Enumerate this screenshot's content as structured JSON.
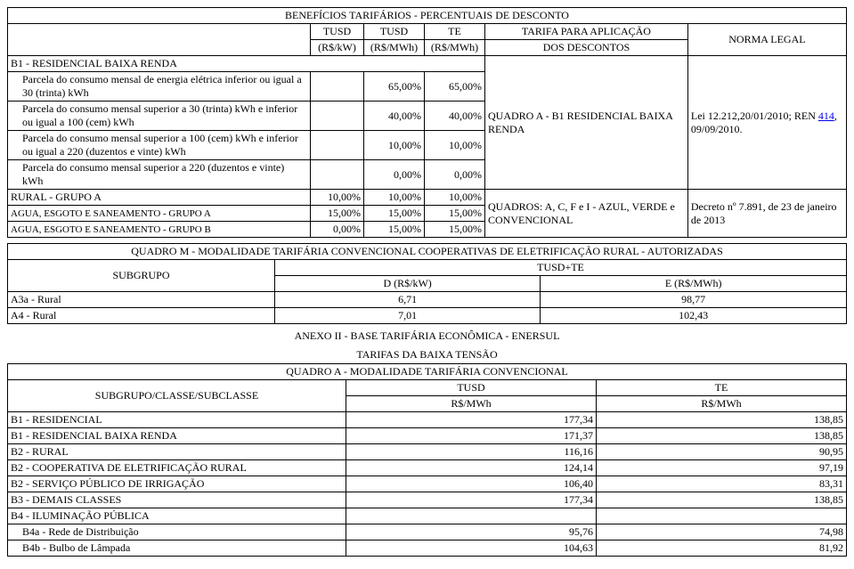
{
  "table1": {
    "title": "BENEFÍCIOS TARIFÁRIOS - PERCENTUAIS DE DESCONTO",
    "headers": {
      "tusd_kw": "TUSD (R$/kW)",
      "tusd_mwh": "TUSD (R$/MWh)",
      "te_mwh": "TE (R$/MWh)",
      "tarifa": "TARIFA PARA APLICAÇÃO DOS DESCONTOS",
      "norma": "NORMA LEGAL",
      "tusd_kw_l1": "TUSD",
      "tusd_kw_l2": "(R$/kW)",
      "tusd_mwh_l1": "TUSD",
      "tusd_mwh_l2": "(R$/MWh)",
      "te_mwh_l1": "TE",
      "te_mwh_l2": "(R$/MWh)",
      "tarifa_l1": "TARIFA PARA APLICAÇÃO",
      "tarifa_l2": "DOS DESCONTOS"
    },
    "groupA": {
      "header": "B1 - RESIDENCIAL BAIXA RENDA",
      "rows": [
        {
          "desc": "Parcela do consumo mensal de energia elétrica inferior ou igual a 30 (trinta) kWh",
          "c2": "65,00%",
          "c3": "65,00%"
        },
        {
          "desc": "Parcela do consumo mensal superior a 30 (trinta) kWh e inferior ou igual a 100 (cem) kWh",
          "c2": "40,00%",
          "c3": "40,00%"
        },
        {
          "desc": "Parcela do consumo mensal superior a 100 (cem) kWh e inferior ou igual a 220 (duzentos e vinte) kWh",
          "c2": "10,00%",
          "c3": "10,00%"
        },
        {
          "desc": "Parcela do consumo mensal superior a 220 (duzentos e vinte) kWh",
          "c2": "0,00%",
          "c3": "0,00%"
        }
      ],
      "tarifa": "QUADRO A - B1 RESIDENCIAL BAIXA RENDA",
      "norma_pre": "Lei 12.212,20/01/2010; REN ",
      "norma_link": "414",
      "norma_post": ", 09/09/2010."
    },
    "groupB": {
      "rows": [
        {
          "desc": "RURAL - GRUPO A",
          "c1": "10,00%",
          "c2": "10,00%",
          "c3": "10,00%"
        },
        {
          "desc": "AGUA, ESGOTO E SANEAMENTO - GRUPO A",
          "c1": "15,00%",
          "c2": "15,00%",
          "c3": "15,00%"
        },
        {
          "desc": "AGUA, ESGOTO E SANEAMENTO - GRUPO B",
          "c1": "0,00%",
          "c2": "15,00%",
          "c3": "15,00%"
        }
      ],
      "tarifa": "QUADROS: A, C, F e I - AZUL, VERDE e CONVENCIONAL",
      "norma": "Decreto nº 7.891, de 23 de janeiro de 2013"
    }
  },
  "table2": {
    "title": "QUADRO M - MODALIDADE TARIFÁRIA CONVENCIONAL COOPERATIVAS DE ELETRIFICAÇÃO RURAL - AUTORIZADAS",
    "headers": {
      "sub": "SUBGRUPO",
      "tusd_te": "TUSD+TE",
      "d": "D (R$/kW)",
      "e": "E (R$/MWh)"
    },
    "rows": [
      {
        "sub": "A3a - Rural",
        "d": "6,71",
        "e": "98,77"
      },
      {
        "sub": "A4 - Rural",
        "d": "7,01",
        "e": "102,43"
      }
    ]
  },
  "anexo": "ANEXO II - BASE TARIFÁRIA ECONÔMICA - ENERSUL",
  "tarifas_bt": "TARIFAS DA BAIXA TENSÃO",
  "table3": {
    "title": "QUADRO A - MODALIDADE TARIFÁRIA CONVENCIONAL",
    "headers": {
      "sub": "SUBGRUPO/CLASSE/SUBCLASSE",
      "tusd": "TUSD",
      "te": "TE",
      "unit": "R$/MWh"
    },
    "rows": [
      {
        "desc": "B1 - RESIDENCIAL",
        "tusd": "177,34",
        "te": "138,85"
      },
      {
        "desc": "B1 - RESIDENCIAL BAIXA RENDA",
        "tusd": "171,37",
        "te": "138,85"
      },
      {
        "desc": "B2 - RURAL",
        "tusd": "116,16",
        "te": "90,95"
      },
      {
        "desc": "B2 - COOPERATIVA DE ELETRIFICAÇÃO RURAL",
        "tusd": "124,14",
        "te": "97,19"
      },
      {
        "desc": "B2 - SERVIÇO PÚBLICO DE IRRIGAÇÃO",
        "tusd": "106,40",
        "te": "83,31"
      },
      {
        "desc": "B3 - DEMAIS CLASSES",
        "tusd": "177,34",
        "te": "138,85"
      },
      {
        "desc": "B4 - ILUMINAÇÃO PÚBLICA",
        "tusd": "",
        "te": ""
      },
      {
        "desc": "B4a - Rede de Distribuição",
        "tusd": "95,76",
        "te": "74,98",
        "indent": true
      },
      {
        "desc": "B4b - Bulbo de Lâmpada",
        "tusd": "104,63",
        "te": "81,92",
        "indent": true
      }
    ]
  }
}
